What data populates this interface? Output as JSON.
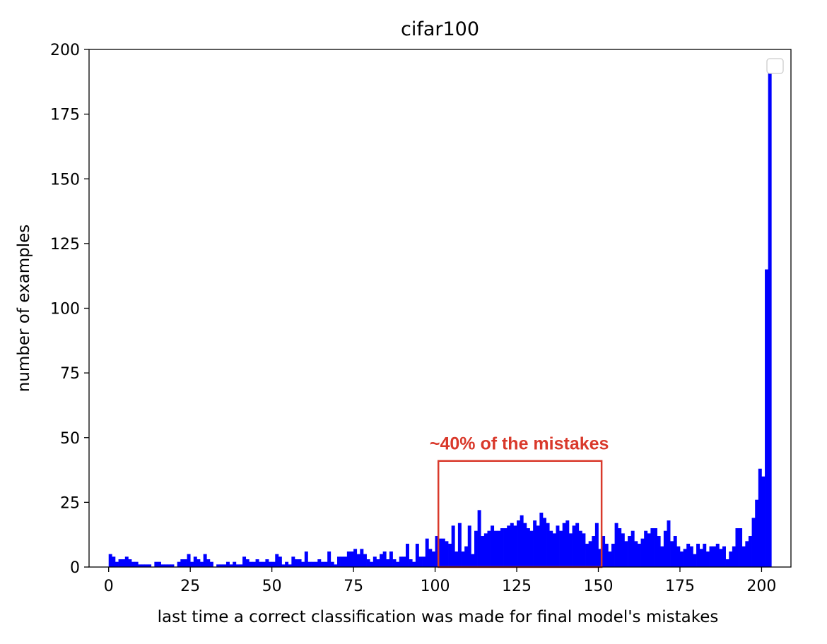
{
  "chart_data": {
    "type": "bar",
    "title": "cifar100",
    "xlabel": "last time a correct classification was made for final model's mistakes",
    "ylabel": "number of examples",
    "xlim": [
      -6,
      209
    ],
    "ylim": [
      0,
      200
    ],
    "xticks": [
      "0",
      "25",
      "50",
      "75",
      "100",
      "125",
      "150",
      "175",
      "200"
    ],
    "yticks": [
      "0",
      "25",
      "50",
      "75",
      "100",
      "125",
      "150",
      "175",
      "200"
    ],
    "bar_color": "#0000ff",
    "grid": false,
    "legend": {
      "position": "upper right",
      "entries": []
    },
    "annotation": {
      "text": "~40% of the mistakes",
      "color": "#d9392b",
      "x_range": [
        101,
        151
      ],
      "y_range": [
        0,
        41
      ]
    },
    "series": [
      {
        "x_start": 0,
        "values": [
          5,
          4,
          2,
          3,
          3,
          4,
          3,
          2,
          2,
          1,
          1,
          1,
          1,
          0,
          2,
          2,
          1,
          1,
          1,
          1,
          0,
          2,
          3,
          3,
          5,
          2,
          4,
          3,
          2,
          5,
          3,
          2,
          0,
          1,
          1,
          1,
          2,
          1,
          2,
          1,
          1,
          4,
          3,
          2,
          2,
          3,
          2,
          2,
          3,
          2,
          2,
          5,
          4,
          1,
          2,
          1,
          4,
          3,
          3,
          2,
          6,
          2,
          2,
          2,
          3,
          2,
          2,
          6,
          2,
          1,
          4,
          4,
          4,
          6,
          6,
          7,
          5,
          7,
          5,
          3,
          2,
          4,
          3,
          5,
          6,
          3,
          6,
          3,
          2,
          4,
          4,
          9,
          3,
          2,
          9,
          4,
          4,
          11,
          7,
          6,
          12,
          11,
          11,
          10,
          9,
          16,
          6,
          17,
          6,
          8,
          16,
          5,
          14,
          22,
          12,
          13,
          14,
          16,
          14,
          14,
          15,
          15,
          16,
          17,
          16,
          18,
          20,
          17,
          15,
          14,
          18,
          16,
          21,
          19,
          17,
          14,
          13,
          16,
          14,
          17,
          18,
          13,
          16,
          17,
          14,
          13,
          9,
          10,
          12,
          17,
          7,
          12,
          9,
          6,
          9,
          17,
          15,
          13,
          10,
          12,
          14,
          10,
          9,
          11,
          14,
          13,
          15,
          15,
          12,
          8,
          14,
          18,
          10,
          12,
          8,
          6,
          7,
          9,
          8,
          5,
          9,
          7,
          9,
          6,
          8,
          8,
          9,
          7,
          8,
          3,
          6,
          8,
          15,
          15,
          8,
          10,
          12,
          19,
          26,
          38,
          35,
          115,
          191
        ]
      }
    ]
  }
}
